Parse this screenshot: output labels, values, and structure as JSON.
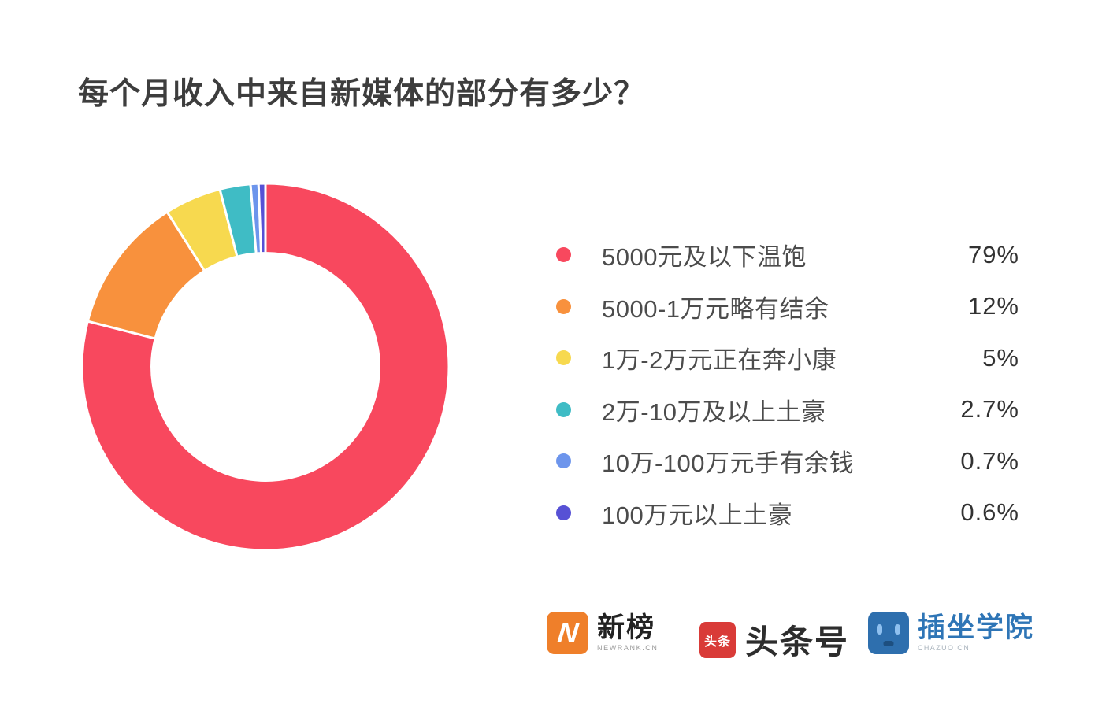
{
  "title": "每个月收入中来自新媒体的部分有多少？",
  "chart_data": {
    "type": "pie",
    "subtype": "donut",
    "title": "每个月收入中来自新媒体的部分有多少？",
    "categories": [
      "5000元及以下温饱",
      "5000-1万元略有结余",
      "1万-2万元正在奔小康",
      "2万-10万及以上土豪",
      "10万-100万元手有余钱",
      "100万元以上土豪"
    ],
    "values": [
      79,
      12,
      5,
      2.7,
      0.7,
      0.6
    ],
    "labels_pct": [
      "79%",
      "12%",
      "5%",
      "2.7%",
      "0.7%",
      "0.6%"
    ],
    "colors": [
      "#f8485e",
      "#f8913d",
      "#f7d94f",
      "#3fbcc5",
      "#6d95ec",
      "#5751d5"
    ],
    "start_angle_deg": 0,
    "direction": "clockwise",
    "legend_position": "right",
    "donut_hole_ratio": 0.62,
    "slice_gap_color": "#ffffff"
  },
  "footer": {
    "logos": [
      {
        "name": "newrank",
        "icon_letter": "N",
        "icon_color": "#ef7f2a",
        "text": "新榜",
        "subtext": "NEWRANK.CN"
      },
      {
        "name": "toutiao",
        "icon_text": "头条",
        "icon_color": "#d93b38",
        "text": "头条号"
      },
      {
        "name": "chazuo",
        "icon_color": "#2e6fae",
        "text": "插坐学院",
        "text_color": "#2e75b6",
        "subtext": "CHAZUO.CN"
      }
    ]
  }
}
